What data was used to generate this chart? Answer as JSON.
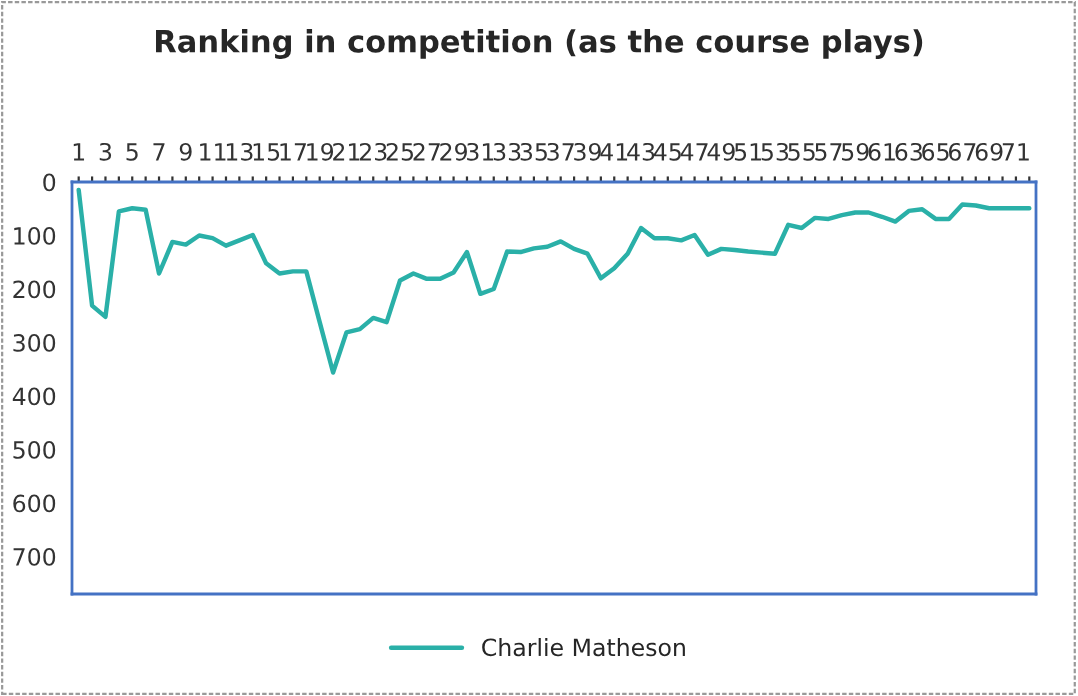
{
  "chart_data": {
    "type": "line",
    "title": "Ranking in competition (as the course plays)",
    "categories": [
      "1",
      null,
      "3",
      null,
      "5",
      null,
      "7",
      null,
      "9",
      null,
      "11",
      null,
      "13",
      null,
      "15",
      null,
      "17",
      null,
      "19",
      null,
      "21",
      null,
      "23",
      null,
      "25",
      null,
      "27",
      null,
      "29",
      null,
      "31",
      null,
      "33",
      null,
      "35",
      null,
      "37",
      null,
      "39",
      null,
      "41",
      null,
      "43",
      null,
      "45",
      null,
      "47",
      null,
      "49",
      null,
      "51",
      null,
      "53",
      null,
      "55",
      null,
      "57",
      null,
      "59",
      null,
      "61",
      null,
      "63",
      null,
      "65",
      null,
      "67",
      null,
      "69",
      null,
      "71",
      null
    ],
    "series": [
      {
        "name": "Charlie Matheson",
        "color": "#2ab0a8",
        "values": [
          15,
          231,
          252,
          55,
          49,
          52,
          171,
          112,
          117,
          100,
          105,
          119,
          109,
          99,
          152,
          171,
          167,
          167,
          262,
          356,
          281,
          275,
          254,
          262,
          184,
          171,
          181,
          181,
          169,
          131,
          209,
          200,
          130,
          131,
          124,
          121,
          111,
          125,
          134,
          180,
          161,
          134,
          86,
          105,
          105,
          109,
          99,
          136,
          125,
          127,
          130,
          132,
          134,
          80,
          86,
          67,
          69,
          62,
          57,
          57,
          65,
          74,
          54,
          51,
          69,
          69,
          42,
          44,
          49,
          49,
          49,
          49
        ]
      }
    ],
    "ylim": [
      770,
      0
    ],
    "yticks": [
      0,
      100,
      200,
      300,
      400,
      500,
      600,
      700
    ],
    "grid": false,
    "legend": "bottom",
    "marker": "none",
    "line_style": "solid"
  }
}
